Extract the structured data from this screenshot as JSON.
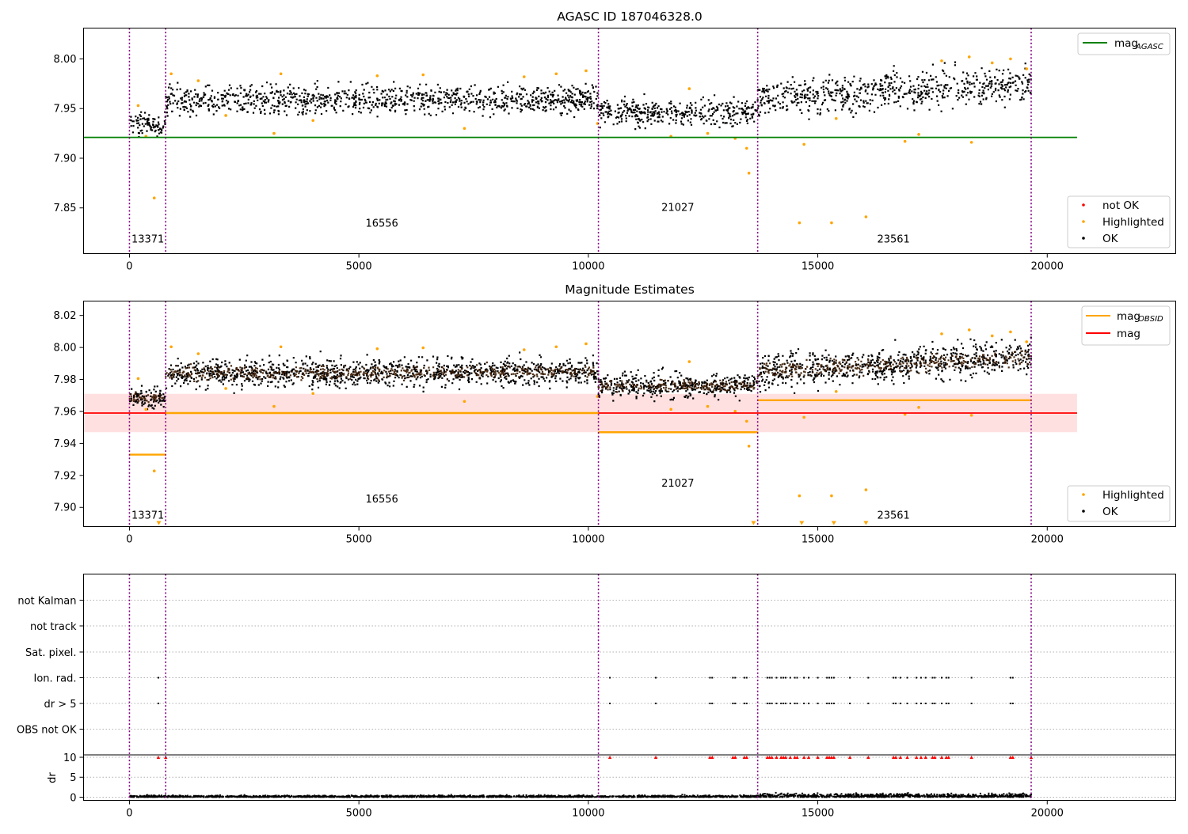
{
  "chart_data": [
    {
      "type": "scatter",
      "title": "AGASC ID 187046328.0",
      "xlim": [
        -1000,
        22800
      ],
      "ylim": [
        7.804,
        8.031
      ],
      "xticks": [
        0,
        5000,
        10000,
        15000,
        20000
      ],
      "yticks": [
        7.85,
        7.9,
        7.95,
        8.0
      ],
      "xtick_labels": [
        "0",
        "5000",
        "10000",
        "15000",
        "20000"
      ],
      "ytick_labels": [
        "7.85",
        "7.90",
        "7.95",
        "8.00"
      ],
      "obs_boundaries": [
        0,
        790,
        10220,
        13690,
        19650
      ],
      "obsid_labels": [
        {
          "text": "13371",
          "x": 400,
          "y": 7.815
        },
        {
          "text": "16556",
          "x": 5500,
          "y": 7.831
        },
        {
          "text": "21027",
          "x": 11950,
          "y": 7.847
        },
        {
          "text": "23561",
          "x": 16650,
          "y": 7.815
        }
      ],
      "ok_segments": [
        {
          "x0": 0,
          "x1": 790,
          "center": 7.934,
          "spread": 0.012
        },
        {
          "x0": 790,
          "x1": 10220,
          "center0": 7.958,
          "center1": 7.96,
          "spread": 0.016
        },
        {
          "x0": 10220,
          "x1": 13690,
          "center": 7.946,
          "spread": 0.014
        },
        {
          "x0": 13690,
          "x1": 19650,
          "center0": 7.96,
          "center1": 7.975,
          "spread": 0.02
        }
      ],
      "highlighted_points": [
        {
          "x": 190,
          "y": 7.953
        },
        {
          "x": 360,
          "y": 7.922
        },
        {
          "x": 540,
          "y": 7.86
        },
        {
          "x": 910,
          "y": 7.985
        },
        {
          "x": 1500,
          "y": 7.978
        },
        {
          "x": 2100,
          "y": 7.943
        },
        {
          "x": 3150,
          "y": 7.925
        },
        {
          "x": 3300,
          "y": 7.985
        },
        {
          "x": 4000,
          "y": 7.938
        },
        {
          "x": 5400,
          "y": 7.983
        },
        {
          "x": 6400,
          "y": 7.984
        },
        {
          "x": 7300,
          "y": 7.93
        },
        {
          "x": 8600,
          "y": 7.982
        },
        {
          "x": 9300,
          "y": 7.985
        },
        {
          "x": 9950,
          "y": 7.988
        },
        {
          "x": 10200,
          "y": 7.935
        },
        {
          "x": 11800,
          "y": 7.922
        },
        {
          "x": 12200,
          "y": 7.97
        },
        {
          "x": 12600,
          "y": 7.925
        },
        {
          "x": 13200,
          "y": 7.92
        },
        {
          "x": 13450,
          "y": 7.91
        },
        {
          "x": 13500,
          "y": 7.885
        },
        {
          "x": 14600,
          "y": 7.835
        },
        {
          "x": 14700,
          "y": 7.914
        },
        {
          "x": 15300,
          "y": 7.835
        },
        {
          "x": 15400,
          "y": 7.94
        },
        {
          "x": 16050,
          "y": 7.841
        },
        {
          "x": 16900,
          "y": 7.917
        },
        {
          "x": 17200,
          "y": 7.924
        },
        {
          "x": 17700,
          "y": 7.998
        },
        {
          "x": 18300,
          "y": 8.002
        },
        {
          "x": 18350,
          "y": 7.916
        },
        {
          "x": 18800,
          "y": 7.996
        },
        {
          "x": 19200,
          "y": 8.0
        },
        {
          "x": 19550,
          "y": 7.99
        }
      ],
      "reference_lines": [
        {
          "name": "mag_AGASC",
          "y": 7.921,
          "x0": -1000,
          "x1": 20650,
          "color": "#008000"
        }
      ],
      "legends": [
        {
          "placement": "top-right",
          "entries": [
            {
              "label": "mag",
              "sub": "AGASC",
              "style": "line",
              "color": "#008000"
            }
          ]
        },
        {
          "placement": "bottom-right",
          "entries": [
            {
              "label": "not OK",
              "style": "dot",
              "color": "#ff0000"
            },
            {
              "label": "Highlighted",
              "style": "dot",
              "color": "#ffa500"
            },
            {
              "label": "OK",
              "style": "dot",
              "color": "#000000"
            }
          ]
        }
      ]
    },
    {
      "type": "scatter",
      "title": "Magnitude Estimates",
      "xlim": [
        -1000,
        22800
      ],
      "ylim": [
        7.888,
        8.029
      ],
      "xticks": [
        0,
        5000,
        10000,
        15000,
        20000
      ],
      "yticks": [
        7.9,
        7.92,
        7.94,
        7.96,
        7.98,
        8.0,
        8.02
      ],
      "xtick_labels": [
        "0",
        "5000",
        "10000",
        "15000",
        "20000"
      ],
      "ytick_labels": [
        "7.90",
        "7.92",
        "7.94",
        "7.96",
        "7.98",
        "8.00",
        "8.02"
      ],
      "obs_boundaries": [
        0,
        790,
        10220,
        13690,
        19650
      ],
      "obsid_labels": [
        {
          "text": "13371",
          "x": 400,
          "y": 7.893
        },
        {
          "text": "16556",
          "x": 5500,
          "y": 7.903
        },
        {
          "text": "21027",
          "x": 11950,
          "y": 7.913
        },
        {
          "text": "23561",
          "x": 16650,
          "y": 7.893
        }
      ],
      "mag_band": {
        "y0": 7.947,
        "y1": 7.971,
        "x0": -1000,
        "x1": 20650,
        "color": "#ffcccc"
      },
      "mag_line": {
        "name": "mag",
        "y": 7.959,
        "color": "#ff0000"
      },
      "mag_obsid": [
        {
          "x0": 0,
          "x1": 790,
          "y": 7.933
        },
        {
          "x0": 790,
          "x1": 10220,
          "y": 7.959
        },
        {
          "x0": 10220,
          "x1": 13690,
          "y": 7.947
        },
        {
          "x0": 13690,
          "x1": 19650,
          "y": 7.967
        }
      ],
      "down_markers": [
        {
          "x": 640,
          "y": 7.889
        },
        {
          "x": 13600,
          "y": 7.889
        },
        {
          "x": 14650,
          "y": 7.889
        },
        {
          "x": 15350,
          "y": 7.889
        },
        {
          "x": 16050,
          "y": 7.889
        }
      ],
      "legends": [
        {
          "placement": "top-right",
          "entries": [
            {
              "label": "mag",
              "sub": "OBSID",
              "style": "line",
              "color": "#ffa500"
            },
            {
              "label": "mag",
              "style": "line",
              "color": "#ff0000"
            }
          ]
        },
        {
          "placement": "bottom-right",
          "entries": [
            {
              "label": "Highlighted",
              "style": "dot",
              "color": "#ffa500"
            },
            {
              "label": "OK",
              "style": "dot",
              "color": "#000000"
            }
          ]
        }
      ]
    },
    {
      "type": "scatter",
      "title": "",
      "xlim": [
        -1000,
        22800
      ],
      "xticks": [
        0,
        5000,
        10000,
        15000,
        20000
      ],
      "xtick_labels": [
        "0",
        "5000",
        "10000",
        "15000",
        "20000"
      ],
      "flag_rows": [
        "not Kalman",
        "not track",
        "Sat. pixel.",
        "Ion. rad.",
        "dr > 5",
        "OBS not OK"
      ],
      "flag_events": {
        "Ion. rad.": [
          630,
          10470,
          11470,
          12650,
          12700,
          13150,
          13200,
          13400,
          13450,
          13900,
          13950,
          14000,
          14100,
          14200,
          14250,
          14300,
          14400,
          14500,
          14550,
          14700,
          14800,
          15000,
          15200,
          15250,
          15300,
          15350,
          15700,
          16100,
          16650,
          16700,
          16800,
          16950,
          17150,
          17250,
          17350,
          17500,
          17550,
          17700,
          17800,
          17850,
          18350,
          19200,
          19250
        ],
        "dr > 5": [
          630,
          10470,
          11470,
          12650,
          12700,
          13150,
          13200,
          13400,
          13450,
          13900,
          13950,
          14000,
          14100,
          14200,
          14250,
          14300,
          14400,
          14500,
          14550,
          14700,
          14800,
          15000,
          15200,
          15250,
          15300,
          15350,
          15700,
          16100,
          16650,
          16700,
          16800,
          16950,
          17150,
          17250,
          17350,
          17500,
          17550,
          17700,
          17800,
          17850,
          18350,
          19200,
          19250
        ]
      },
      "dr_axis": {
        "ylabel": "dr",
        "yticks": [
          0,
          5,
          10
        ],
        "ytick_labels": [
          "0",
          "5",
          "10"
        ],
        "ylim": [
          -0.8,
          10.6
        ]
      },
      "dr_clipped": [
        630,
        790,
        10470,
        11470,
        12650,
        12700,
        13150,
        13200,
        13400,
        13450,
        13900,
        13950,
        14000,
        14100,
        14200,
        14250,
        14300,
        14400,
        14500,
        14550,
        14700,
        14800,
        15000,
        15200,
        15250,
        15300,
        15350,
        15700,
        16100,
        16650,
        16700,
        16800,
        16950,
        17150,
        17250,
        17350,
        17500,
        17550,
        17700,
        17800,
        17850,
        18350,
        19200,
        19250,
        19650
      ]
    }
  ]
}
